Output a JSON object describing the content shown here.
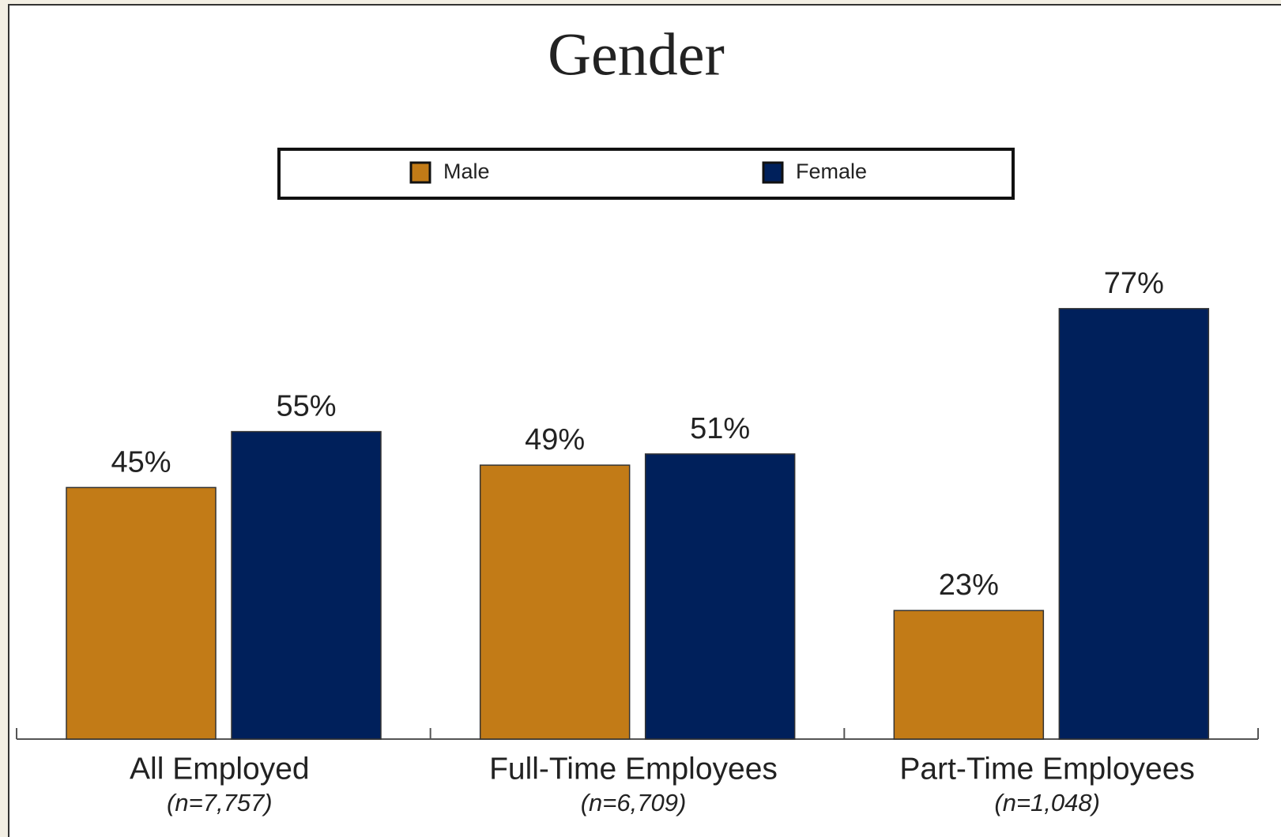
{
  "chart_data": {
    "type": "bar",
    "title": "Gender",
    "categories": [
      "All Employed",
      "Full-Time Employees",
      "Part-Time Employees"
    ],
    "category_notes": [
      "(n=7,757)",
      "(n=6,709)",
      "(n=1,048)"
    ],
    "series": [
      {
        "name": "Male",
        "color": "#c27b17",
        "values": [
          45,
          49,
          23
        ],
        "value_labels": [
          "45%",
          "49%",
          "23%"
        ]
      },
      {
        "name": "Female",
        "color": "#00205b",
        "values": [
          55,
          51,
          77
        ],
        "value_labels": [
          "55%",
          "51%",
          "77%"
        ]
      }
    ],
    "legend": "top"
  }
}
